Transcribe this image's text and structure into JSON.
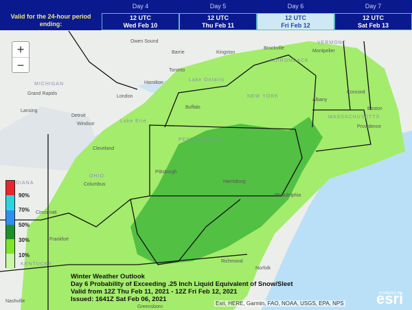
{
  "header": {
    "valid_label": "Valid for the 24-hour period ending:",
    "days": [
      {
        "day": "Day 4",
        "time": "12 UTC",
        "date": "Wed Feb 10",
        "active": false
      },
      {
        "day": "Day 5",
        "time": "12 UTC",
        "date": "Thu Feb 11",
        "active": false
      },
      {
        "day": "Day 6",
        "time": "12 UTC",
        "date": "Fri Feb 12",
        "active": true
      },
      {
        "day": "Day 7",
        "time": "12 UTC",
        "date": "Sat Feb 13",
        "active": false
      }
    ]
  },
  "map_controls": {
    "zoom_in": "+",
    "zoom_out": "−"
  },
  "legend": {
    "colors": [
      "#e8262b",
      "#2ed3e0",
      "#2f8ff0",
      "#1f8f2a",
      "#7ee628",
      "#c8f7a6"
    ],
    "labels": [
      "90%",
      "70%",
      "50%",
      "30%",
      "10%"
    ]
  },
  "title_block": {
    "line1": "Winter Weather Outlook",
    "line2": "Day 6 Probability of Exceeding .25 Inch Liquid Equivalent of Snow/Sleet",
    "line3": "Valid from 12Z Thu Feb 11, 2021 - 12Z Fri Feb 12, 2021",
    "line4": "Issued: 1641Z Sat Feb 06, 2021"
  },
  "attribution": "Esri, HERE, Garmin, FAO, NOAA, USGS, EPA, NPS",
  "esri_logo": {
    "powered": "POWERED BY",
    "name": "esri"
  },
  "places": {
    "cities": [
      "Owen Sound",
      "Barrie",
      "Kingston",
      "Brockville",
      "Montpelier",
      "Toronto",
      "Hamilton",
      "London",
      "Grand Rapids",
      "Lansing",
      "Detroit",
      "Windsor",
      "Buffalo",
      "Albany",
      "Concord",
      "Boston",
      "Providence",
      "Cleveland",
      "Pittsburgh",
      "Harrisburg",
      "Philadelphia",
      "Columbus",
      "Cincinnati",
      "Frankfort",
      "Richmond",
      "Norfolk",
      "Nashville",
      "Greensboro"
    ],
    "regions": [
      "MICHIGAN",
      "VERMONT",
      "ADIRONDACK",
      "NEW YORK",
      "PENNSYLVANIA",
      "OHIO",
      "KENTUCKY",
      "INDIANA",
      "MASSACHUSETTS",
      "Lake Erie",
      "Lake Ontario"
    ]
  }
}
